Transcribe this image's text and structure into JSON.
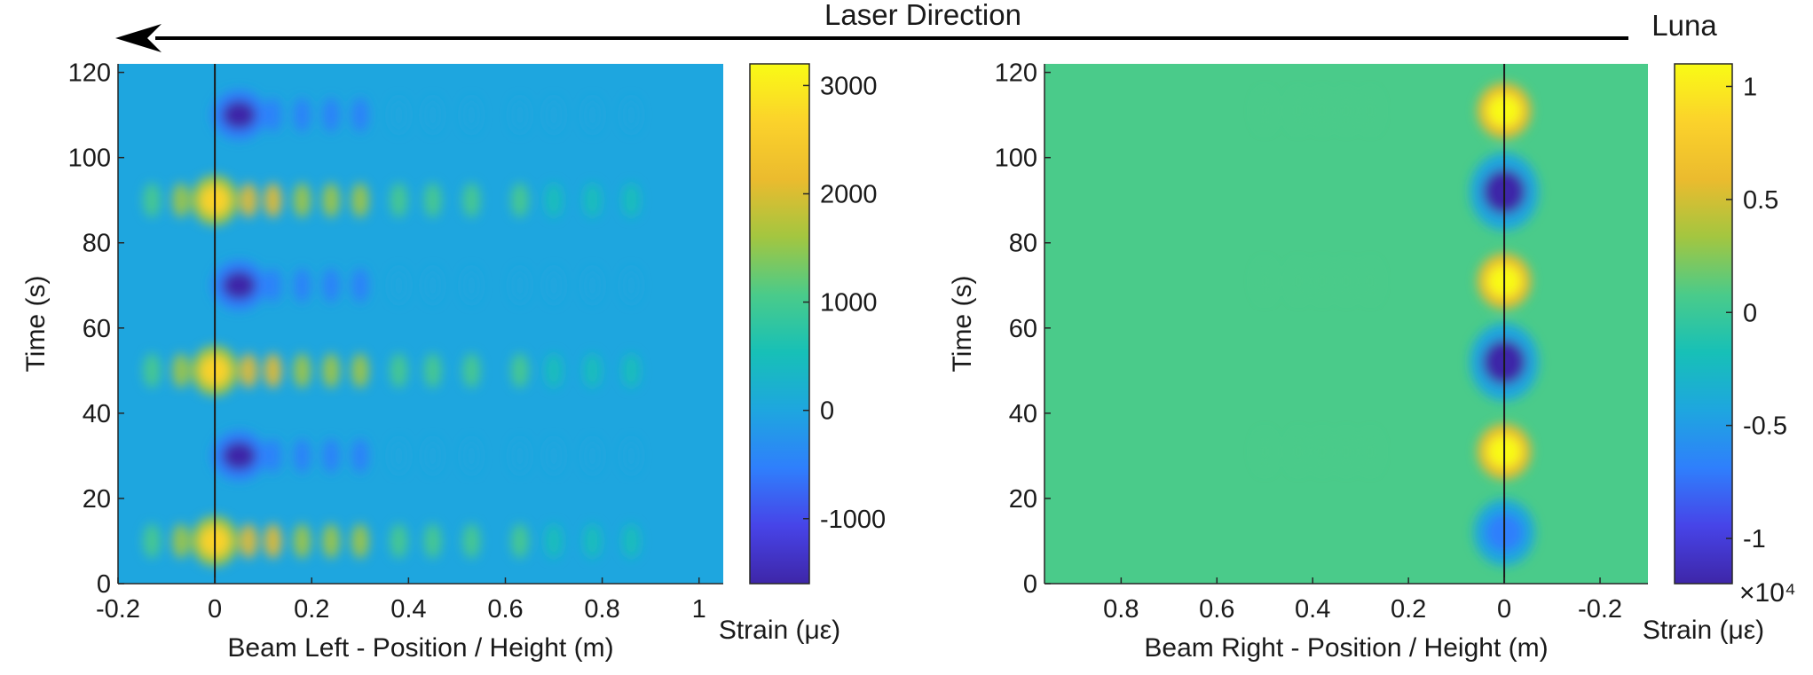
{
  "header": {
    "laser_direction": "Laser Direction",
    "instrument": "Luna"
  },
  "colors": {
    "parula": [
      "#3e26a8",
      "#4744e8",
      "#2f7ffc",
      "#1ea6df",
      "#17c0b7",
      "#4acb8a",
      "#a3c640",
      "#ebbb2e",
      "#fbd22b",
      "#f9fb15"
    ],
    "background_low": "#2b8ff0",
    "background_mid": "#20b8c4",
    "axis": "#262626",
    "arrow": "#000000"
  },
  "chart_data": [
    {
      "type": "heatmap",
      "title": "",
      "xlabel": "Beam Left - Position / Height (m)",
      "ylabel": "Time (s)",
      "xlim": [
        -0.2,
        1.05
      ],
      "ylim": [
        0,
        122
      ],
      "x_ticks": [
        "-0.2",
        "0",
        "0.2",
        "0.4",
        "0.6",
        "0.8",
        "1"
      ],
      "y_ticks": [
        "0",
        "20",
        "40",
        "60",
        "80",
        "100",
        "120"
      ],
      "colorbar": {
        "label": "Strain (με)",
        "range": [
          -1600,
          3200
        ],
        "ticks": [
          "-1000",
          "0",
          "1000",
          "2000",
          "3000"
        ],
        "exponent": ""
      },
      "background_value": 250,
      "reference_line_x": 0,
      "features": [
        {
          "x": 0.0,
          "t": 10,
          "value": 2900,
          "sx": 0.03,
          "st": 4.5
        },
        {
          "x": 0.0,
          "t": 50,
          "value": 2900,
          "sx": 0.03,
          "st": 4.5
        },
        {
          "x": 0.0,
          "t": 90,
          "value": 2900,
          "sx": 0.03,
          "st": 4.5
        },
        {
          "x": 0.05,
          "t": 30,
          "value": -1400,
          "sx": 0.035,
          "st": 4.5
        },
        {
          "x": 0.05,
          "t": 70,
          "value": -1400,
          "sx": 0.035,
          "st": 4.5
        },
        {
          "x": 0.05,
          "t": 110,
          "value": -1400,
          "sx": 0.035,
          "st": 4.5
        }
      ],
      "echo_positions": [
        -0.13,
        -0.07,
        0.07,
        0.12,
        0.18,
        0.24,
        0.3,
        0.38,
        0.45,
        0.53,
        0.63,
        0.7,
        0.78,
        0.86
      ],
      "echo_amplitudes": [
        800,
        1400,
        1900,
        1700,
        1500,
        1300,
        1150,
        1050,
        900,
        750,
        600,
        450,
        300,
        150
      ],
      "echo_amplitudes_negative": [
        0,
        0,
        1100,
        900,
        800,
        700,
        600,
        500,
        420,
        320,
        220,
        120,
        60,
        20
      ]
    },
    {
      "type": "heatmap",
      "title": "",
      "xlabel": "Beam Right - Position / Height (m)",
      "ylabel": "Time (s)",
      "xlim": [
        0.96,
        -0.3
      ],
      "ylim": [
        0,
        122
      ],
      "x_ticks": [
        "0.8",
        "0.6",
        "0.4",
        "0.2",
        "0",
        "-0.2"
      ],
      "y_ticks": [
        "0",
        "20",
        "40",
        "60",
        "80",
        "100",
        "120"
      ],
      "colorbar": {
        "label": "Strain (με)",
        "range": [
          -1.2,
          1.1
        ],
        "ticks": [
          "-1",
          "-0.5",
          "0",
          "0.5",
          "1"
        ],
        "exponent": "×10⁴"
      },
      "background_value": 0.02,
      "reference_line_x": 0,
      "features": [
        {
          "x": 0.0,
          "t": 31,
          "value": 1.1,
          "sx": 0.035,
          "st": 5
        },
        {
          "x": 0.0,
          "t": 71,
          "value": 1.1,
          "sx": 0.035,
          "st": 5
        },
        {
          "x": 0.0,
          "t": 111,
          "value": 1.1,
          "sx": 0.035,
          "st": 5
        },
        {
          "x": 0.0,
          "t": 12,
          "value": -0.8,
          "sx": 0.04,
          "st": 6
        },
        {
          "x": 0.0,
          "t": 52,
          "value": -1.2,
          "sx": 0.045,
          "st": 7
        },
        {
          "x": 0.0,
          "t": 92,
          "value": -1.2,
          "sx": 0.045,
          "st": 7
        }
      ],
      "echo_positions": [
        0.28,
        0.33,
        0.38,
        0.43,
        0.5
      ],
      "echo_amplitudes": [
        0.1,
        0.09,
        0.09,
        0.08,
        0.06
      ],
      "echo_amplitudes_negative": [
        0,
        0,
        0,
        0,
        0
      ]
    }
  ]
}
